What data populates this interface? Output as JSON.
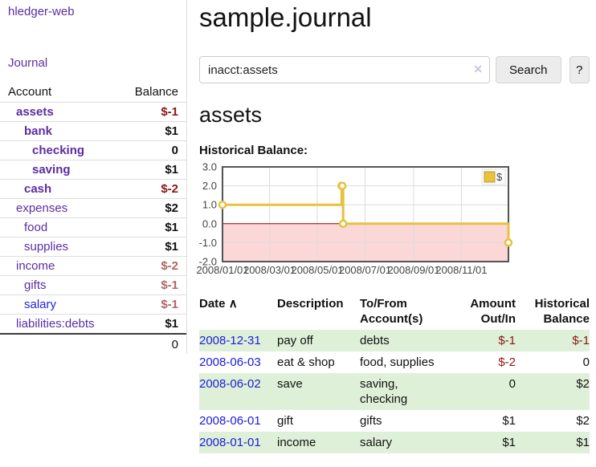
{
  "sidebar": {
    "brand": "hledger-web",
    "nav": {
      "journal": "Journal"
    },
    "accounts_table": {
      "headers": {
        "account": "Account",
        "balance": "Balance"
      },
      "rows": [
        {
          "name": "assets",
          "depth": 1,
          "bold": true,
          "balance": "$-1",
          "negative": "strong"
        },
        {
          "name": "bank",
          "depth": 2,
          "bold": true,
          "balance": "$1",
          "negative": null
        },
        {
          "name": "checking",
          "depth": 3,
          "bold": true,
          "balance": "0",
          "negative": null
        },
        {
          "name": "saving",
          "depth": 3,
          "bold": true,
          "balance": "$1",
          "negative": null
        },
        {
          "name": "cash",
          "depth": 2,
          "bold": true,
          "balance": "$-2",
          "negative": "strong"
        },
        {
          "name": "expenses",
          "depth": 1,
          "bold": false,
          "balance": "$2",
          "negative": null
        },
        {
          "name": "food",
          "depth": 2,
          "bold": false,
          "balance": "$1",
          "negative": null
        },
        {
          "name": "supplies",
          "depth": 2,
          "bold": false,
          "balance": "$1",
          "negative": null
        },
        {
          "name": "income",
          "depth": 1,
          "bold": false,
          "balance": "$-2",
          "negative": "soft"
        },
        {
          "name": "gifts",
          "depth": 2,
          "bold": false,
          "balance": "$-1",
          "negative": "soft"
        },
        {
          "name": "salary",
          "depth": 2,
          "bold": false,
          "balance": "$-1",
          "negative": "soft",
          "blue": true
        },
        {
          "name": "liabilities:debts",
          "depth": 1,
          "bold": false,
          "balance": "$1",
          "negative": null
        }
      ],
      "total": "0"
    }
  },
  "main": {
    "title": "sample.journal",
    "search": {
      "value": "inacct:assets",
      "clear_icon": "✕",
      "search_button": "Search",
      "help_button": "?"
    },
    "account_heading": "assets",
    "chart_heading": "Historical Balance:",
    "register_table": {
      "headers": {
        "date": "Date",
        "sort_icon": "∧",
        "description": "Description",
        "accounts": "To/From Account(s)",
        "amount": "Amount Out/In",
        "balance": "Historical Balance"
      },
      "rows": [
        {
          "date": "2008-12-31",
          "description": "pay off",
          "accounts": "debts",
          "amount": "$-1",
          "amount_negative": true,
          "balance": "$-1",
          "balance_negative": true,
          "shaded": true
        },
        {
          "date": "2008-06-03",
          "description": "eat & shop",
          "accounts": "food, supplies",
          "amount": "$-2",
          "amount_negative": true,
          "balance": "0",
          "balance_negative": false,
          "shaded": false
        },
        {
          "date": "2008-06-02",
          "description": "save",
          "accounts": "saving, checking",
          "amount": "0",
          "amount_negative": false,
          "balance": "$2",
          "balance_negative": false,
          "shaded": true
        },
        {
          "date": "2008-06-01",
          "description": "gift",
          "accounts": "gifts",
          "amount": "$1",
          "amount_negative": false,
          "balance": "$2",
          "balance_negative": false,
          "shaded": false
        },
        {
          "date": "2008-01-01",
          "description": "income",
          "accounts": "salary",
          "amount": "$1",
          "amount_negative": false,
          "balance": "$1",
          "balance_negative": false,
          "shaded": true
        }
      ]
    }
  },
  "chart_data": {
    "type": "line",
    "title": "Historical Balance",
    "step": true,
    "series": [
      {
        "name": "$",
        "color": "#e6c23f",
        "points": [
          [
            "2008-01-01",
            1
          ],
          [
            "2008-06-01",
            2
          ],
          [
            "2008-06-02",
            2
          ],
          [
            "2008-06-03",
            0
          ],
          [
            "2008-12-31",
            -1
          ]
        ]
      }
    ],
    "ylim": [
      -2,
      3
    ],
    "yticks": [
      "3.0",
      "2.0",
      "1.0",
      "0.0",
      "-1.0",
      "-2.0"
    ],
    "xticks": [
      "2008/01/01",
      "2008/03/01",
      "2008/05/01",
      "2008/07/01",
      "2008/09/01",
      "2008/11/01"
    ],
    "x_range_days": 365,
    "legend": {
      "label": "$",
      "position": "top-right"
    },
    "grid": true,
    "colors": {
      "negative_region": "#fbd7d7",
      "zero_line": "#8b0000",
      "grid_line": "#dcdcdc",
      "border": "#545454",
      "tick_text": "#444444",
      "legend_square_fill": "#e8c43e",
      "legend_square_stroke": "#bb9723"
    }
  }
}
